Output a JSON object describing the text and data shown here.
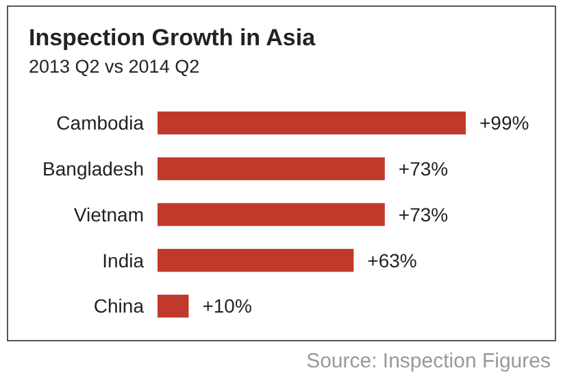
{
  "chart_data": {
    "type": "bar",
    "orientation": "horizontal",
    "title": "Inspection Growth in Asia",
    "subtitle": "2013 Q2 vs 2014 Q2",
    "categories": [
      "Cambodia",
      "Bangladesh",
      "Vietnam",
      "India",
      "China"
    ],
    "values": [
      99,
      73,
      73,
      63,
      10
    ],
    "color": "#c0392b",
    "value_labels": [
      "+99%",
      "+73%",
      "+73%",
      "+63%",
      "+10%"
    ],
    "annotations": [
      "Source: Inspection Figures"
    ]
  }
}
